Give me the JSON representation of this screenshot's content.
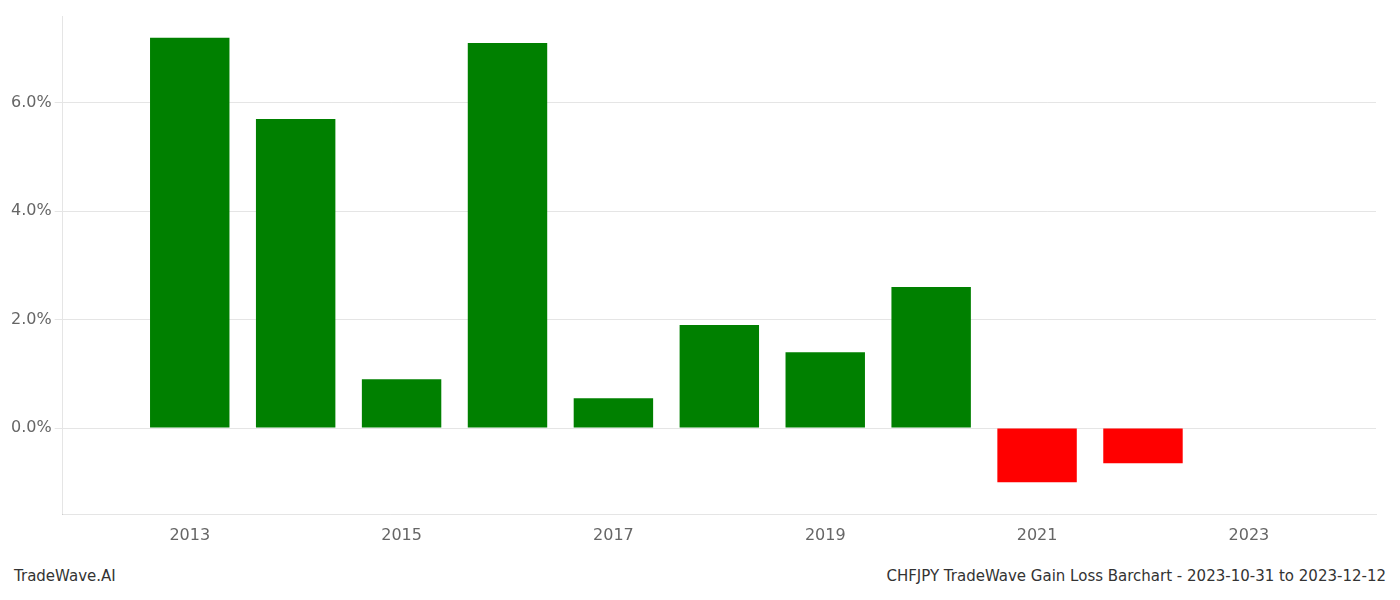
{
  "chart_data": {
    "type": "bar",
    "x": [
      2013,
      2014,
      2015,
      2016,
      2017,
      2018,
      2019,
      2020,
      2021,
      2022
    ],
    "values": [
      0.072,
      0.057,
      0.009,
      0.071,
      0.0055,
      0.019,
      0.014,
      0.026,
      -0.01,
      -0.0065
    ],
    "colors": [
      "#008000",
      "#008000",
      "#008000",
      "#008000",
      "#008000",
      "#008000",
      "#008000",
      "#008000",
      "#ff0000",
      "#ff0000"
    ],
    "xlim": [
      2011.8,
      2024.2
    ],
    "xticks": [
      2013,
      2015,
      2017,
      2019,
      2021,
      2023
    ],
    "ylim": [
      -0.016,
      0.076
    ],
    "yticks": [
      {
        "value": 0.0,
        "label": "0.0%"
      },
      {
        "value": 0.02,
        "label": "2.0%"
      },
      {
        "value": 0.04,
        "label": "4.0%"
      },
      {
        "value": 0.06,
        "label": "6.0%"
      }
    ],
    "grid": "y",
    "annotations": [
      "TradeWave.AI",
      "CHFJPY TradeWave Gain Loss Barchart - 2023-10-31 to 2023-12-12"
    ]
  }
}
